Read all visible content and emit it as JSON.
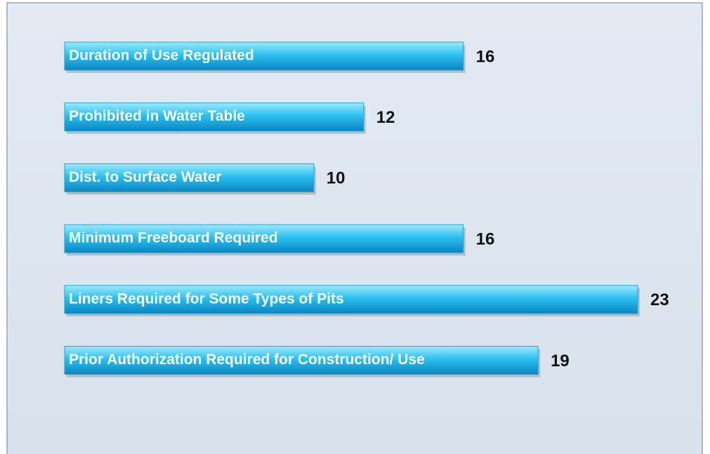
{
  "chart_data": {
    "type": "bar",
    "orientation": "horizontal",
    "categories": [
      "Duration of Use Regulated",
      "Prohibited in Water Table",
      "Dist. to Surface Water",
      "Minimum Freeboard Required",
      "Liners Required for Some Types of Pits",
      "Prior Authorization Required for Construction/ Use"
    ],
    "values": [
      16,
      12,
      10,
      16,
      23,
      19
    ],
    "color": "#17a6e0"
  }
}
